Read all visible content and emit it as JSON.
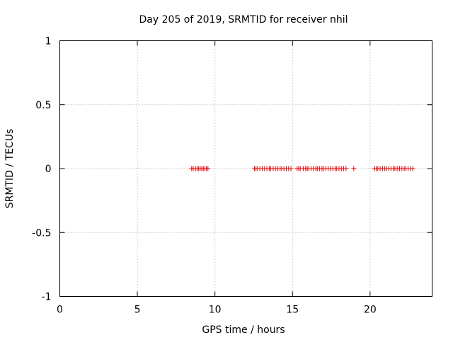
{
  "chart_data": {
    "type": "scatter",
    "title": "Day 205 of 2019, SRMTID for receiver nhil",
    "xlabel": "GPS time / hours",
    "ylabel": "SRMTID / TECUs",
    "xlim": [
      0,
      24
    ],
    "ylim": [
      -1,
      1
    ],
    "xticks": [
      0,
      5,
      10,
      15,
      20
    ],
    "xtick_labels": [
      "0",
      "5",
      "10",
      "15",
      "20"
    ],
    "yticks": [
      -1,
      -0.5,
      0,
      0.5,
      1
    ],
    "ytick_labels": [
      "-1",
      "-0.5",
      "0",
      "0.5",
      "1"
    ],
    "grid": true,
    "marker": "+",
    "series": [
      {
        "name": "SRMTID",
        "color": "#e00000",
        "x": [
          8.5,
          8.6,
          8.75,
          8.85,
          8.95,
          9.05,
          9.15,
          9.25,
          9.35,
          9.45,
          9.55,
          12.55,
          12.65,
          12.75,
          12.9,
          13.05,
          13.2,
          13.35,
          13.5,
          13.6,
          13.75,
          13.9,
          14.05,
          14.2,
          14.3,
          14.45,
          14.6,
          14.75,
          14.9,
          15.3,
          15.4,
          15.5,
          15.7,
          15.85,
          15.95,
          16.05,
          16.2,
          16.35,
          16.5,
          16.6,
          16.75,
          16.9,
          17.0,
          17.15,
          17.3,
          17.45,
          17.6,
          17.75,
          17.85,
          18.0,
          18.15,
          18.3,
          18.45,
          18.95,
          20.3,
          20.4,
          20.5,
          20.65,
          20.8,
          20.95,
          21.05,
          21.2,
          21.35,
          21.5,
          21.6,
          21.75,
          21.9,
          22.05,
          22.2,
          22.3,
          22.45,
          22.6,
          22.75
        ],
        "y": [
          0,
          0,
          0,
          0,
          0,
          0,
          0,
          0,
          0,
          0,
          0,
          0,
          0,
          0,
          0,
          0,
          0,
          0,
          0,
          0,
          0,
          0,
          0,
          0,
          0,
          0,
          0,
          0,
          0,
          0,
          0,
          0,
          0,
          0,
          0,
          0,
          0,
          0,
          0,
          0,
          0,
          0,
          0,
          0,
          0,
          0,
          0,
          0,
          0,
          0,
          0,
          0,
          0,
          0,
          0,
          0,
          0,
          0,
          0,
          0,
          0,
          0,
          0,
          0,
          0,
          0,
          0,
          0,
          0,
          0,
          0,
          0,
          0
        ]
      }
    ]
  }
}
